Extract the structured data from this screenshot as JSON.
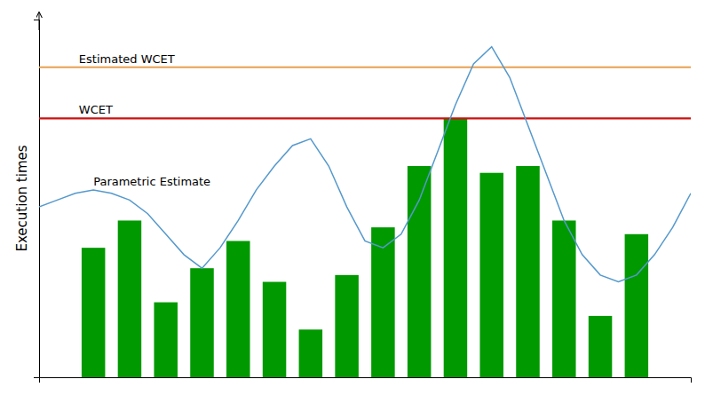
{
  "chart_data": {
    "type": "bar",
    "ylabel": "Execution times",
    "xlim": [
      -0.5,
      17.5
    ],
    "ylim": [
      0,
      1.05
    ],
    "xticks": [],
    "yticks": [],
    "tick_labels": false,
    "series": [
      {
        "type": "bar",
        "color": "#009900",
        "values": [
          0.38,
          0.46,
          0.22,
          0.32,
          0.4,
          0.28,
          0.14,
          0.3,
          0.44,
          0.62,
          0.76,
          0.6,
          0.62,
          0.46,
          0.18,
          0.42
        ]
      },
      {
        "type": "line",
        "color": "#5599CC",
        "x": [
          -0.5,
          0.0,
          0.5,
          1.0,
          1.5,
          2.0,
          2.5,
          3.0,
          3.5,
          4.0,
          4.5,
          5.0,
          5.5,
          6.0,
          6.5,
          7.0,
          7.5,
          8.0,
          8.5,
          9.0,
          9.5,
          10.0,
          10.5,
          11.0,
          11.5,
          12.0,
          12.5,
          13.0,
          13.5,
          14.0,
          14.5,
          15.0,
          15.5,
          16.0,
          16.5,
          17.0,
          17.5
        ],
        "values": [
          0.5,
          0.52,
          0.54,
          0.55,
          0.54,
          0.52,
          0.48,
          0.42,
          0.36,
          0.32,
          0.38,
          0.46,
          0.55,
          0.62,
          0.68,
          0.7,
          0.62,
          0.5,
          0.4,
          0.38,
          0.42,
          0.52,
          0.66,
          0.8,
          0.92,
          0.97,
          0.88,
          0.74,
          0.6,
          0.46,
          0.36,
          0.3,
          0.28,
          0.3,
          0.36,
          0.44,
          0.54
        ]
      }
    ],
    "reference_lines": [
      {
        "label": "Estimated WCET",
        "y": 0.91,
        "color": "#E8A050"
      },
      {
        "label": "WCET",
        "y": 0.76,
        "color": "#CC1111"
      }
    ],
    "annotations": [
      {
        "text": "Parametric Estimate"
      }
    ]
  }
}
